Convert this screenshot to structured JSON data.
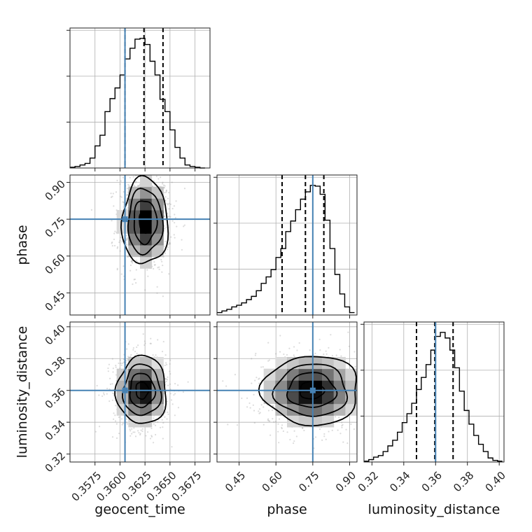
{
  "chart_data": {
    "type": "corner",
    "parameters": [
      {
        "name": "geocent_time",
        "xlabel": "geocent_time",
        "range": [
          0.355,
          0.369
        ],
        "ticks": [
          0.3575,
          0.36,
          0.3625,
          0.365,
          0.3675
        ],
        "tick_labels": [
          "0.3575",
          "0.3600",
          "0.3625",
          "0.3650",
          "0.3675"
        ],
        "truth": 0.3605,
        "quantiles": [
          0.3605,
          0.3624,
          0.3643
        ],
        "histogram": {
          "bin_edges": [
            0.355,
            0.3555,
            0.356,
            0.3565,
            0.357,
            0.3575,
            0.358,
            0.3585,
            0.359,
            0.3595,
            0.36,
            0.3605,
            0.361,
            0.3615,
            0.362,
            0.3625,
            0.363,
            0.3635,
            0.364,
            0.3645,
            0.365,
            0.3655,
            0.366,
            0.3665,
            0.367,
            0.3675,
            0.368,
            0.3685
          ],
          "counts": [
            1,
            2,
            4,
            6,
            13,
            29,
            43,
            74,
            91,
            105,
            122,
            143,
            157,
            169,
            170,
            162,
            140,
            122,
            90,
            74,
            50,
            27,
            13,
            4,
            2,
            1,
            0
          ]
        }
      },
      {
        "name": "phase",
        "xlabel": "phase",
        "ylabel": "phase",
        "range": [
          0.36,
          0.93
        ],
        "ticks": [
          0.45,
          0.6,
          0.75,
          0.9
        ],
        "tick_labels": [
          "0.45",
          "0.60",
          "0.75",
          "0.90"
        ],
        "truth": 0.75,
        "quantiles": [
          0.625,
          0.72,
          0.795
        ],
        "histogram": {
          "bin_edges": [
            0.36,
            0.38,
            0.4,
            0.42,
            0.44,
            0.46,
            0.48,
            0.5,
            0.52,
            0.54,
            0.56,
            0.58,
            0.6,
            0.62,
            0.64,
            0.66,
            0.68,
            0.7,
            0.72,
            0.74,
            0.76,
            0.78,
            0.8,
            0.82,
            0.84,
            0.86,
            0.88,
            0.9,
            0.92
          ],
          "counts": [
            3,
            5,
            7,
            10,
            12,
            15,
            19,
            23,
            30,
            39,
            47,
            56,
            71,
            82,
            103,
            116,
            130,
            143,
            152,
            160,
            159,
            149,
            117,
            82,
            50,
            26,
            10,
            3
          ]
        }
      },
      {
        "name": "luminosity_distance",
        "xlabel": "luminosity_distance",
        "ylabel": "luminosity_distance",
        "range": [
          0.315,
          0.403
        ],
        "ticks": [
          0.32,
          0.34,
          0.36,
          0.38,
          0.4
        ],
        "tick_labels": [
          "0.32",
          "0.34",
          "0.36",
          "0.38",
          "0.40"
        ],
        "truth": 0.36,
        "quantiles": [
          0.348,
          0.3595,
          0.371
        ],
        "histogram": {
          "bin_edges": [
            0.315,
            0.318,
            0.321,
            0.324,
            0.327,
            0.33,
            0.333,
            0.336,
            0.339,
            0.342,
            0.345,
            0.348,
            0.351,
            0.354,
            0.357,
            0.36,
            0.363,
            0.366,
            0.369,
            0.372,
            0.375,
            0.378,
            0.381,
            0.384,
            0.387,
            0.39,
            0.393,
            0.396,
            0.399,
            0.402
          ],
          "counts": [
            1,
            3,
            6,
            8,
            13,
            20,
            27,
            37,
            49,
            60,
            73,
            90,
            105,
            121,
            139,
            156,
            161,
            154,
            139,
            117,
            88,
            64,
            47,
            33,
            22,
            13,
            5,
            2,
            1
          ]
        }
      }
    ],
    "pairs": [
      {
        "x": "geocent_time",
        "y": "phase",
        "peak": [
          0.3625,
          0.74
        ],
        "sigma": [
          0.00115,
          0.088
        ]
      },
      {
        "x": "geocent_time",
        "y": "luminosity_distance",
        "peak": [
          0.3622,
          0.36
        ],
        "sigma": [
          0.00125,
          0.0107
        ]
      },
      {
        "x": "phase",
        "y": "luminosity_distance",
        "peak": [
          0.745,
          0.36
        ],
        "sigma": [
          0.098,
          0.0109
        ]
      }
    ],
    "grid": true,
    "colors": {
      "truth": "#4682b4",
      "hist": "#000000",
      "density": "#000000",
      "scatter": "#9a9a9a"
    }
  }
}
